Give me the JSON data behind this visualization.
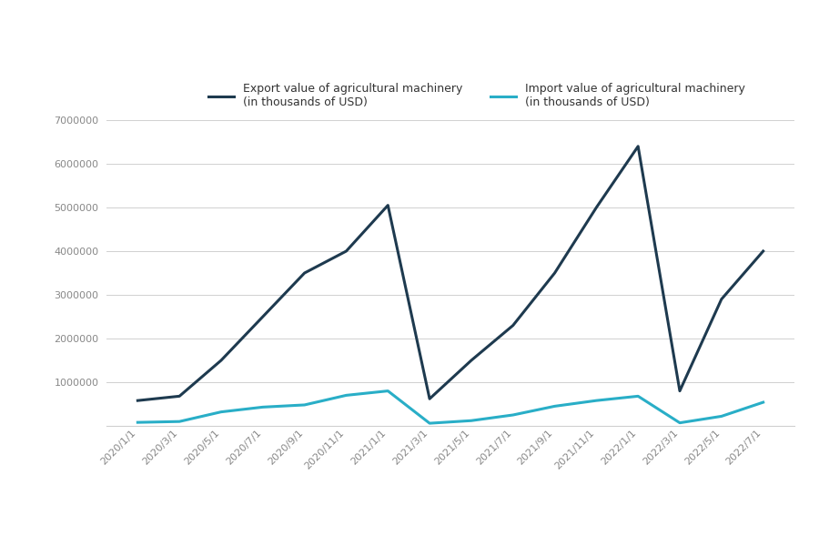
{
  "x_labels": [
    "2020/1/1",
    "2020/3/1",
    "2020/5/1",
    "2020/7/1",
    "2020/9/1",
    "2020/11/1",
    "2021/1/1",
    "2021/3/1",
    "2021/5/1",
    "2021/7/1",
    "2021/9/1",
    "2021/11/1",
    "2022/1/1",
    "2022/3/1",
    "2022/5/1",
    "2022/7/1"
  ],
  "export_values": [
    580000,
    680000,
    1500000,
    2500000,
    3500000,
    4000000,
    5050000,
    620000,
    1500000,
    2300000,
    3500000,
    5000000,
    6400000,
    800000,
    2900000,
    4000000
  ],
  "import_values": [
    80000,
    100000,
    320000,
    430000,
    480000,
    700000,
    800000,
    60000,
    120000,
    250000,
    450000,
    580000,
    680000,
    70000,
    220000,
    540000
  ],
  "export_label": "Export value of agricultural machinery\n(in thousands of USD)",
  "import_label": "Import value of agricultural machinery\n(in thousands of USD)",
  "export_color": "#1e3a4f",
  "import_color": "#29aec7",
  "ylim": [
    0,
    7000000
  ],
  "yticks": [
    0,
    1000000,
    2000000,
    3000000,
    4000000,
    5000000,
    6000000,
    7000000
  ],
  "background_color": "#ffffff",
  "grid_color": "#d0d0d0",
  "line_width": 2.2,
  "legend_fontsize": 9,
  "tick_fontsize": 8,
  "tick_color": "#888888"
}
